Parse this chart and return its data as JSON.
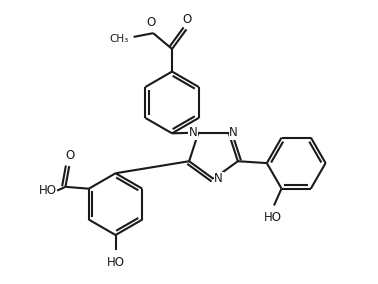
{
  "bg_color": "#ffffff",
  "line_color": "#1a1a1a",
  "line_width": 1.5,
  "fig_width": 3.78,
  "fig_height": 2.84,
  "dpi": 100,
  "xlim": [
    0,
    10
  ],
  "ylim": [
    0,
    7.5
  ]
}
